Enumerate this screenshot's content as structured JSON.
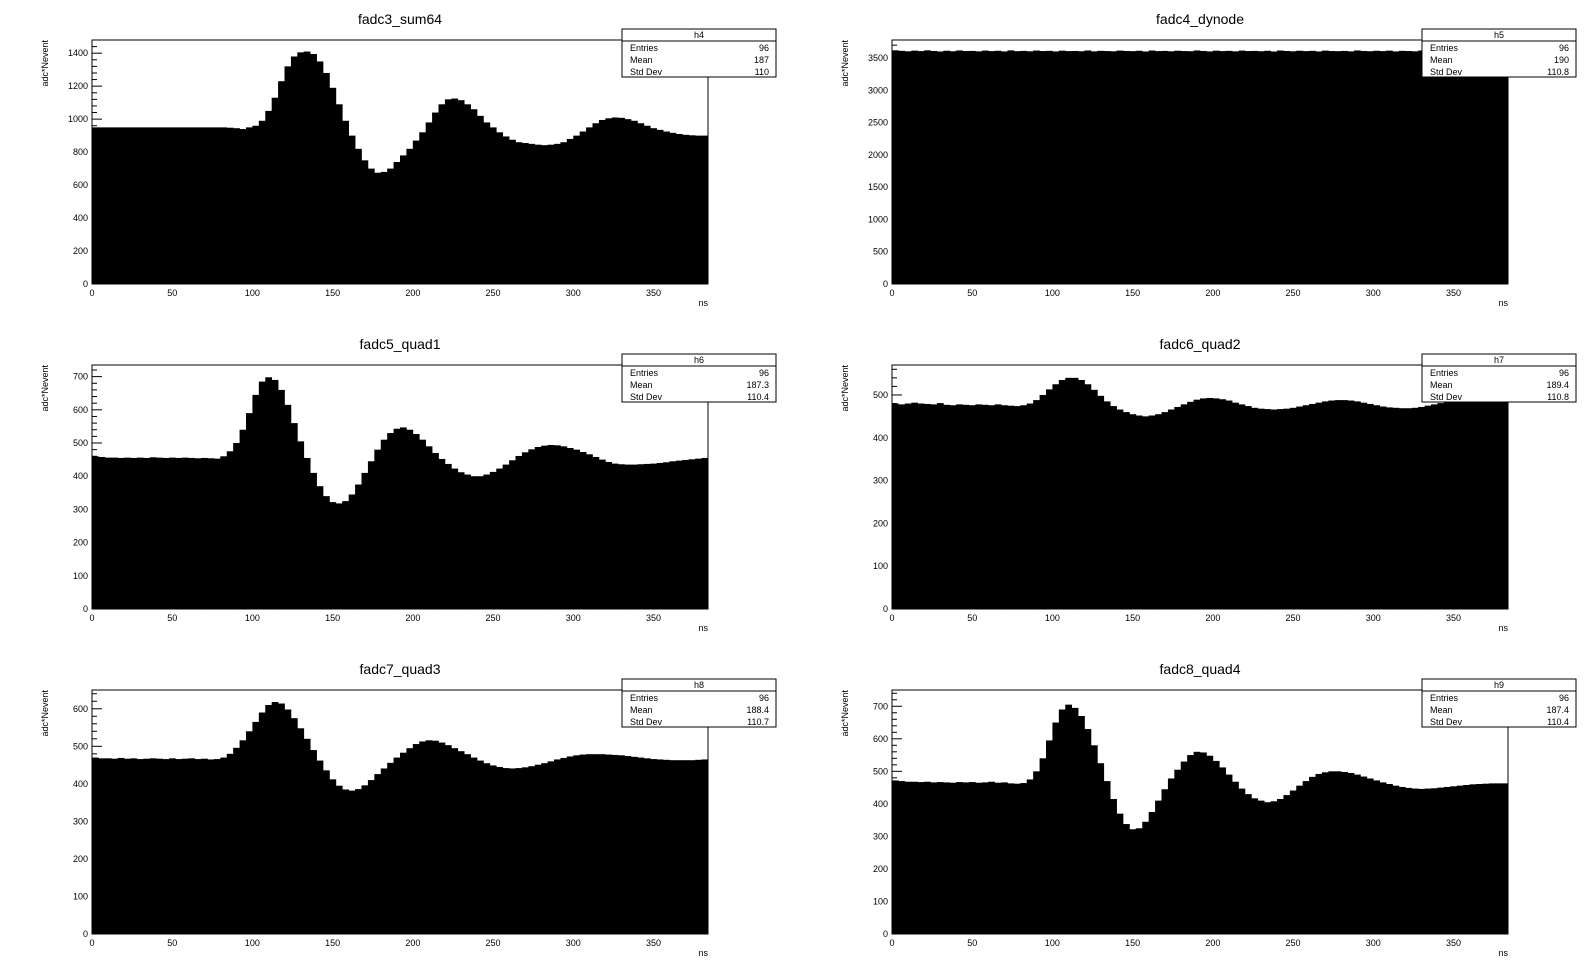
{
  "style": {
    "fill_color": "#000000",
    "frame_color": "#000000",
    "background": "#ffffff"
  },
  "chart_data": [
    {
      "type": "bar",
      "title": "fadc3_sum64",
      "xlabel": "ns",
      "ylabel": "adc*Nevent",
      "xlim": [
        0,
        384
      ],
      "ylim": [
        0,
        1480
      ],
      "bin_width": 4,
      "xticks": [
        0,
        50,
        100,
        150,
        200,
        250,
        300,
        350
      ],
      "yticks": [
        0,
        200,
        400,
        600,
        800,
        1000,
        1200,
        1400
      ],
      "stats": {
        "name": "h4",
        "entries_label": "Entries",
        "entries": "96",
        "mean_label": "Mean",
        "mean": "187",
        "std_label": "Std Dev",
        "std": "110"
      },
      "values": [
        950,
        950,
        950,
        950,
        950,
        950,
        950,
        950,
        950,
        950,
        950,
        950,
        950,
        950,
        950,
        950,
        950,
        950,
        950,
        950,
        950,
        948,
        945,
        940,
        950,
        960,
        990,
        1050,
        1130,
        1230,
        1320,
        1380,
        1405,
        1410,
        1395,
        1350,
        1280,
        1190,
        1090,
        990,
        900,
        820,
        750,
        700,
        675,
        680,
        700,
        740,
        780,
        820,
        870,
        920,
        980,
        1040,
        1090,
        1120,
        1125,
        1115,
        1090,
        1060,
        1020,
        980,
        950,
        920,
        895,
        875,
        860,
        855,
        850,
        845,
        842,
        845,
        850,
        860,
        880,
        900,
        925,
        950,
        975,
        995,
        1005,
        1010,
        1008,
        1000,
        990,
        975,
        960,
        945,
        935,
        925,
        917,
        910,
        905,
        902,
        900,
        900
      ]
    },
    {
      "type": "bar",
      "title": "fadc4_dynode",
      "xlabel": "ns",
      "ylabel": "adc*Nevent",
      "xlim": [
        0,
        384
      ],
      "ylim": [
        0,
        3780
      ],
      "bin_width": 4,
      "xticks": [
        0,
        50,
        100,
        150,
        200,
        250,
        300,
        350
      ],
      "yticks": [
        0,
        500,
        1000,
        1500,
        2000,
        2500,
        3000,
        3500
      ],
      "stats": {
        "name": "h5",
        "entries_label": "Entries",
        "entries": "96",
        "mean_label": "Mean",
        "mean": "190",
        "std_label": "Std Dev",
        "std": "110.8"
      },
      "values": [
        3620,
        3612,
        3605,
        3615,
        3608,
        3620,
        3610,
        3602,
        3614,
        3606,
        3618,
        3609,
        3611,
        3604,
        3616,
        3608,
        3613,
        3603,
        3619,
        3607,
        3611,
        3605,
        3617,
        3609,
        3612,
        3603,
        3615,
        3608,
        3610,
        3606,
        3618,
        3604,
        3612,
        3609,
        3605,
        3616,
        3610,
        3607,
        3613,
        3602,
        3617,
        3608,
        3611,
        3605,
        3614,
        3609,
        3606,
        3618,
        3610,
        3603,
        3615,
        3608,
        3612,
        3604,
        3616,
        3609,
        3611,
        3606,
        3613,
        3602,
        3617,
        3610,
        3605,
        3614,
        3608,
        3612,
        3603,
        3616,
        3609,
        3607,
        3611,
        3604,
        3618,
        3610,
        3606,
        3613,
        3608,
        3615,
        3603,
        3612,
        3609,
        3605,
        3617,
        3610,
        3606,
        3614,
        3608,
        3611,
        3604,
        3616,
        3609,
        3612,
        3605,
        3613,
        3608,
        3612
      ]
    },
    {
      "type": "bar",
      "title": "fadc5_quad1",
      "xlabel": "ns",
      "ylabel": "adc*Nevent",
      "xlim": [
        0,
        384
      ],
      "ylim": [
        0,
        735
      ],
      "bin_width": 4,
      "xticks": [
        0,
        50,
        100,
        150,
        200,
        250,
        300,
        350
      ],
      "yticks": [
        0,
        100,
        200,
        300,
        400,
        500,
        600,
        700
      ],
      "stats": {
        "name": "h6",
        "entries_label": "Entries",
        "entries": "96",
        "mean_label": "Mean",
        "mean": "187.3",
        "std_label": "Std Dev",
        "std": "110.4"
      },
      "values": [
        460,
        458,
        456,
        456,
        455,
        456,
        455,
        456,
        455,
        457,
        456,
        455,
        456,
        455,
        456,
        455,
        454,
        455,
        454,
        453,
        460,
        475,
        500,
        540,
        590,
        645,
        685,
        698,
        690,
        660,
        615,
        560,
        505,
        455,
        410,
        370,
        340,
        322,
        318,
        325,
        345,
        375,
        410,
        445,
        480,
        510,
        530,
        543,
        547,
        540,
        527,
        510,
        490,
        470,
        452,
        437,
        423,
        412,
        405,
        400,
        400,
        405,
        413,
        423,
        435,
        448,
        461,
        472,
        481,
        488,
        492,
        494,
        493,
        490,
        485,
        480,
        473,
        466,
        458,
        450,
        443,
        438,
        436,
        435,
        435,
        436,
        437,
        438,
        440,
        442,
        445,
        447,
        449,
        451,
        453,
        455
      ]
    },
    {
      "type": "bar",
      "title": "fadc6_quad2",
      "xlabel": "ns",
      "ylabel": "adc*Nevent",
      "xlim": [
        0,
        384
      ],
      "ylim": [
        0,
        570
      ],
      "bin_width": 4,
      "xticks": [
        0,
        50,
        100,
        150,
        200,
        250,
        300,
        350
      ],
      "yticks": [
        0,
        100,
        200,
        300,
        400,
        500
      ],
      "stats": {
        "name": "h7",
        "entries_label": "Entries",
        "entries": "96",
        "mean_label": "Mean",
        "mean": "189.4",
        "std_label": "Std Dev",
        "std": "110.8"
      },
      "values": [
        480,
        478,
        480,
        482,
        480,
        479,
        478,
        481,
        477,
        476,
        478,
        477,
        476,
        478,
        477,
        476,
        478,
        476,
        475,
        474,
        476,
        480,
        488,
        500,
        513,
        525,
        535,
        540,
        540,
        535,
        525,
        512,
        498,
        485,
        474,
        466,
        460,
        455,
        452,
        450,
        452,
        455,
        460,
        466,
        472,
        478,
        484,
        489,
        492,
        493,
        492,
        490,
        487,
        482,
        478,
        474,
        470,
        468,
        467,
        466,
        467,
        468,
        470,
        473,
        476,
        479,
        482,
        485,
        487,
        488,
        488,
        487,
        485,
        482,
        479,
        476,
        473,
        471,
        470,
        469,
        469,
        470,
        472,
        475,
        478,
        481,
        484,
        486,
        488,
        489,
        490,
        490,
        490,
        489,
        488,
        488
      ]
    },
    {
      "type": "bar",
      "title": "fadc7_quad3",
      "xlabel": "ns",
      "ylabel": "adc*Nevent",
      "xlim": [
        0,
        384
      ],
      "ylim": [
        0,
        650
      ],
      "bin_width": 4,
      "xticks": [
        0,
        50,
        100,
        150,
        200,
        250,
        300,
        350
      ],
      "yticks": [
        0,
        100,
        200,
        300,
        400,
        500,
        600
      ],
      "stats": {
        "name": "h8",
        "entries_label": "Entries",
        "entries": "96",
        "mean_label": "Mean",
        "mean": "188.4",
        "std_label": "Std Dev",
        "std": "110.7"
      },
      "values": [
        470,
        468,
        468,
        467,
        469,
        467,
        468,
        466,
        467,
        468,
        467,
        466,
        468,
        466,
        467,
        468,
        466,
        467,
        465,
        466,
        470,
        480,
        496,
        516,
        540,
        565,
        590,
        610,
        618,
        614,
        598,
        575,
        548,
        520,
        490,
        462,
        436,
        412,
        395,
        385,
        382,
        386,
        396,
        410,
        426,
        441,
        456,
        470,
        483,
        495,
        506,
        513,
        516,
        515,
        510,
        503,
        495,
        487,
        479,
        470,
        462,
        455,
        449,
        445,
        442,
        441,
        442,
        444,
        447,
        451,
        455,
        460,
        465,
        469,
        473,
        476,
        478,
        479,
        479,
        479,
        478,
        477,
        476,
        474,
        472,
        470,
        468,
        466,
        465,
        464,
        463,
        463,
        463,
        463,
        464,
        465
      ]
    },
    {
      "type": "bar",
      "title": "fadc8_quad4",
      "xlabel": "ns",
      "ylabel": "adc*Nevent",
      "xlim": [
        0,
        384
      ],
      "ylim": [
        0,
        750
      ],
      "bin_width": 4,
      "xticks": [
        0,
        50,
        100,
        150,
        200,
        250,
        300,
        350
      ],
      "yticks": [
        0,
        100,
        200,
        300,
        400,
        500,
        600,
        700
      ],
      "stats": {
        "name": "h9",
        "entries_label": "Entries",
        "entries": "96",
        "mean_label": "Mean",
        "mean": "187.4",
        "std_label": "Std Dev",
        "std": "110.4"
      },
      "values": [
        472,
        470,
        468,
        468,
        467,
        468,
        466,
        467,
        466,
        465,
        467,
        466,
        467,
        465,
        466,
        468,
        465,
        466,
        463,
        462,
        464,
        475,
        500,
        540,
        595,
        650,
        690,
        705,
        695,
        670,
        630,
        580,
        525,
        470,
        415,
        370,
        338,
        322,
        325,
        345,
        375,
        410,
        445,
        478,
        505,
        530,
        550,
        560,
        558,
        548,
        532,
        512,
        490,
        468,
        447,
        430,
        417,
        410,
        405,
        408,
        415,
        427,
        441,
        456,
        470,
        483,
        492,
        497,
        500,
        500,
        498,
        495,
        490,
        484,
        478,
        472,
        466,
        461,
        456,
        452,
        449,
        447,
        446,
        447,
        448,
        450,
        452,
        454,
        456,
        458,
        460,
        461,
        462,
        463,
        463,
        463
      ]
    }
  ]
}
